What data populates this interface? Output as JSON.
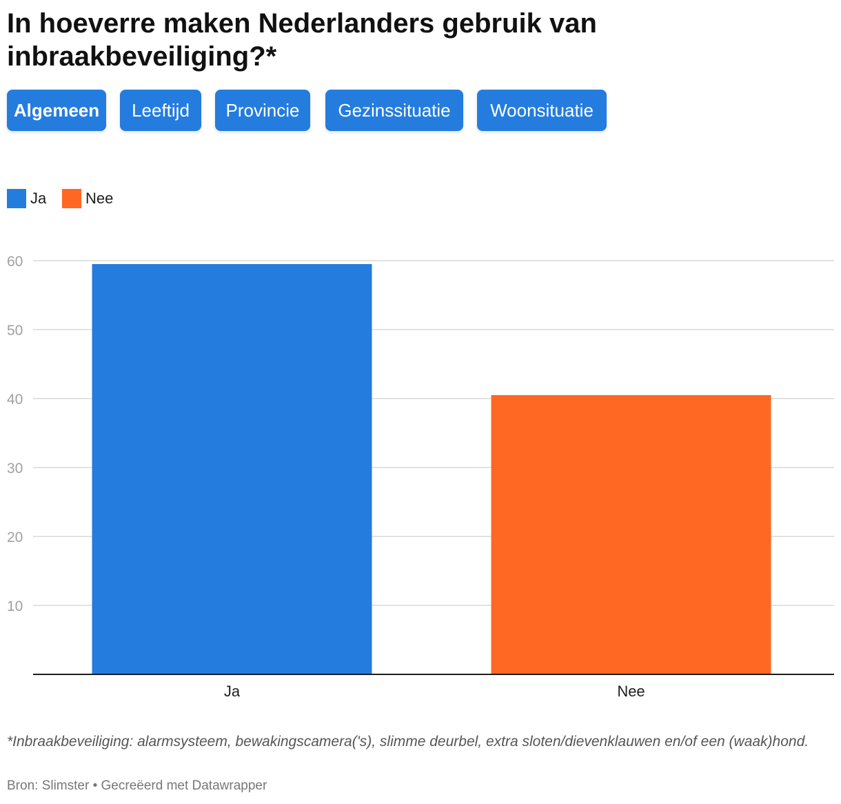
{
  "title": "In hoeverre maken Nederlanders gebruik van inbraakbeveiliging?*",
  "tabs": [
    "Algemeen",
    "Leeftijd",
    "Provincie",
    "Gezinssituatie",
    "Woonsituatie"
  ],
  "active_tab": "Algemeen",
  "legend": [
    {
      "label": "Ja",
      "color": "#247cde"
    },
    {
      "label": "Nee",
      "color": "#ff6823"
    }
  ],
  "chart_data": {
    "type": "bar",
    "categories": [
      "Ja",
      "Nee"
    ],
    "values": [
      59.5,
      40.5
    ],
    "colors": [
      "#247cde",
      "#ff6823"
    ],
    "ylim": [
      0,
      60
    ],
    "yticks": [
      10,
      20,
      30,
      40,
      50,
      60
    ],
    "grid": true,
    "legend_position": "top-left"
  },
  "footnote": "*Inbraakbeveiliging: alarmsysteem, bewakingscamera('s), slimme deurbel, extra sloten/dievenklauwen en/of een (waak)hond.",
  "source": "Bron: Slimster • Gecreëerd met Datawrapper"
}
